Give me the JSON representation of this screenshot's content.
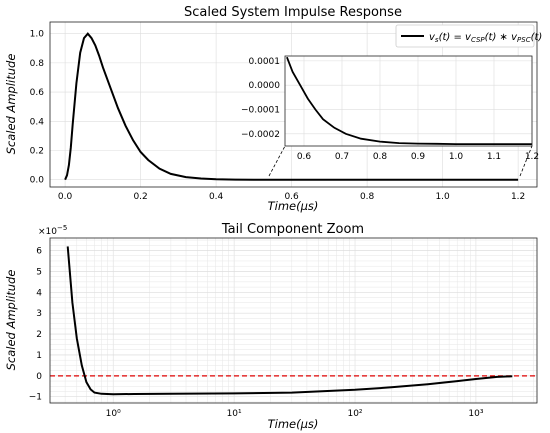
{
  "chart_data": [
    {
      "type": "line",
      "title": "Scaled System Impulse Response",
      "xlabel": "Time(μs)",
      "ylabel": "Scaled Amplitude",
      "xlim": [
        -0.04,
        1.25
      ],
      "ylim": [
        -0.05,
        1.08
      ],
      "xticks": [
        "0.0",
        "0.2",
        "0.4",
        "0.6",
        "0.8",
        "1.0",
        "1.2"
      ],
      "yticks": [
        "0.0",
        "0.2",
        "0.4",
        "0.6",
        "0.8",
        "1.0"
      ],
      "grid": true,
      "legend": {
        "placement": "top-right",
        "label": "v_s(t) = v_CSP(t) ∗ v_PSC(t)"
      },
      "series": [
        {
          "color": "#000000",
          "x": [
            0.0,
            0.005,
            0.01,
            0.015,
            0.02,
            0.03,
            0.04,
            0.05,
            0.06,
            0.07,
            0.08,
            0.09,
            0.1,
            0.12,
            0.14,
            0.16,
            0.18,
            0.2,
            0.22,
            0.25,
            0.28,
            0.32,
            0.36,
            0.4,
            0.45,
            0.5,
            0.55,
            0.6,
            0.7,
            0.8,
            0.9,
            1.0,
            1.1,
            1.2
          ],
          "y": [
            0.0,
            0.03,
            0.1,
            0.22,
            0.38,
            0.66,
            0.87,
            0.97,
            1.0,
            0.97,
            0.92,
            0.85,
            0.77,
            0.63,
            0.49,
            0.37,
            0.27,
            0.19,
            0.135,
            0.075,
            0.04,
            0.018,
            0.008,
            0.003,
            0.001,
            0.0003,
            0.0001,
            0.0,
            0.0,
            0.0,
            0.0,
            0.0,
            0.0,
            0.0
          ]
        }
      ],
      "inset": {
        "xlim": [
          0.55,
          1.2
        ],
        "ylim": [
          -0.00025,
          0.00012
        ],
        "xticks": [
          "0.6",
          "0.7",
          "0.8",
          "0.9",
          "1.0",
          "1.1",
          "1.2"
        ],
        "yticks": [
          "0.0001",
          "0.0000",
          "−0.0001",
          "−0.0002"
        ],
        "series": {
          "x": [
            0.555,
            0.57,
            0.59,
            0.61,
            0.63,
            0.65,
            0.68,
            0.71,
            0.75,
            0.8,
            0.85,
            0.9,
            0.95,
            1.0,
            1.05,
            1.1,
            1.15,
            1.2
          ],
          "y": [
            0.000115,
            5.5e-05,
            0.0,
            -5.5e-05,
            -0.0001,
            -0.00014,
            -0.000175,
            -0.0002,
            -0.00022,
            -0.000232,
            -0.000238,
            -0.00024,
            -0.000241,
            -0.000242,
            -0.000242,
            -0.000242,
            -0.000242,
            -0.000242
          ]
        }
      }
    },
    {
      "type": "line",
      "title": "Tail Component Zoom",
      "xlabel": "Time(μs)",
      "ylabel": "Scaled Amplitude",
      "xscale": "log",
      "xlim": [
        0.3,
        3200
      ],
      "ylim": [
        -1.3,
        6.6
      ],
      "y_multiplier": "×10⁻⁵",
      "xticks": [
        "10⁰",
        "10¹",
        "10²",
        "10³"
      ],
      "yticks": [
        "−1",
        "0",
        "1",
        "2",
        "3",
        "4",
        "5",
        "6"
      ],
      "grid": true,
      "reference_line": {
        "y": 0,
        "color": "#dd0000",
        "style": "dashed"
      },
      "series": [
        {
          "color": "#000000",
          "x": [
            0.42,
            0.46,
            0.5,
            0.55,
            0.6,
            0.65,
            0.7,
            0.8,
            1,
            1.5,
            3,
            10,
            30,
            100,
            200,
            400,
            700,
            1000,
            1500,
            2000
          ],
          "y": [
            6.2,
            3.5,
            1.8,
            0.5,
            -0.3,
            -0.65,
            -0.8,
            -0.86,
            -0.88,
            -0.87,
            -0.86,
            -0.84,
            -0.8,
            -0.67,
            -0.55,
            -0.4,
            -0.25,
            -0.15,
            -0.05,
            -0.02
          ]
        }
      ]
    }
  ]
}
